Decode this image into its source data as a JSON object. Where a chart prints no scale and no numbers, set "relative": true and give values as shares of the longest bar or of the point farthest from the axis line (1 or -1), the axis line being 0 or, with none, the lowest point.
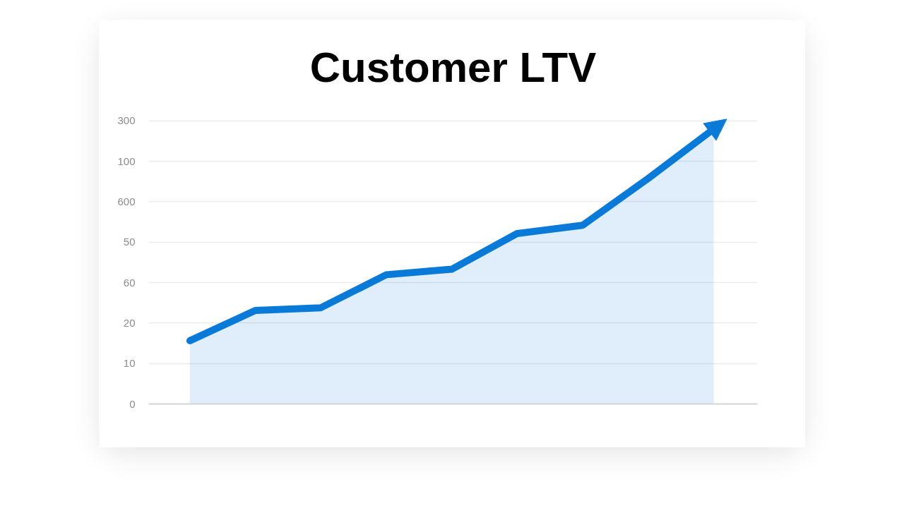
{
  "chart_data": {
    "type": "area",
    "title": "Customer LTV",
    "relative": true,
    "categories": [
      null,
      null,
      null,
      null,
      null,
      null,
      null,
      null,
      null
    ],
    "series": [
      {
        "color": "#0a7ad8",
        "values": [
          0.23,
          0.34,
          0.35,
          0.47,
          0.49,
          0.62,
          0.65,
          0.82,
          1
        ]
      }
    ],
    "annotations": [
      "0",
      "10",
      "20",
      "60",
      "50",
      "600",
      "100",
      "300"
    ],
    "grid": "y"
  }
}
